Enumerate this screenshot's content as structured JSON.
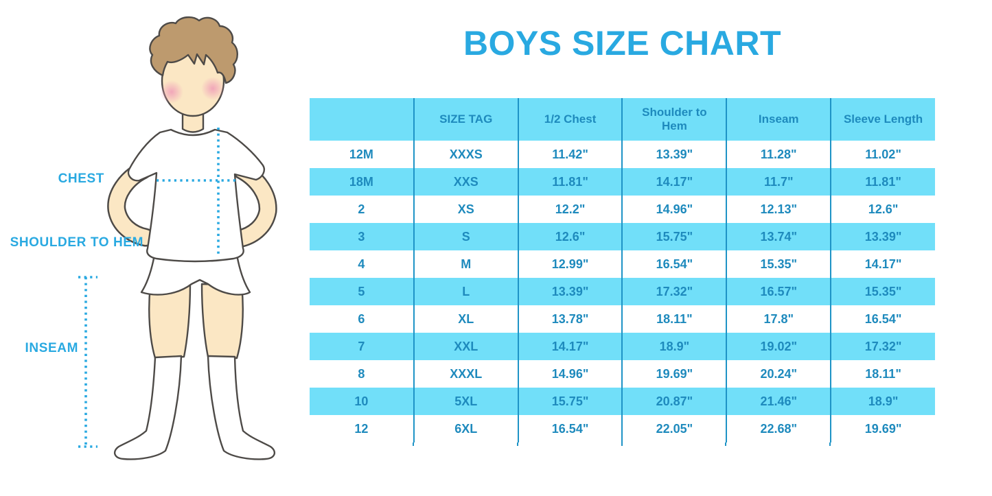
{
  "title": "BOYS SIZE CHART",
  "figure": {
    "chest_label": "CHEST",
    "shoulder_to_hem_label": "SHOULDER TO HEM",
    "inseam_label": "INSEAM"
  },
  "chart_data": {
    "type": "table",
    "title": "BOYS SIZE CHART",
    "columns": [
      "",
      "SIZE TAG",
      "1/2 Chest",
      "Shoulder to Hem",
      "Inseam",
      "Sleeve Length"
    ],
    "rows": [
      [
        "12M",
        "XXXS",
        "11.42\"",
        "13.39\"",
        "11.28\"",
        "11.02\""
      ],
      [
        "18M",
        "XXS",
        "11.81\"",
        "14.17\"",
        "11.7\"",
        "11.81\""
      ],
      [
        "2",
        "XS",
        "12.2\"",
        "14.96\"",
        "12.13\"",
        "12.6\""
      ],
      [
        "3",
        "S",
        "12.6\"",
        "15.75\"",
        "13.74\"",
        "13.39\""
      ],
      [
        "4",
        "M",
        "12.99\"",
        "16.54\"",
        "15.35\"",
        "14.17\""
      ],
      [
        "5",
        "L",
        "13.39\"",
        "17.32\"",
        "16.57\"",
        "15.35\""
      ],
      [
        "6",
        "XL",
        "13.78\"",
        "18.11\"",
        "17.8\"",
        "16.54\""
      ],
      [
        "7",
        "XXL",
        "14.17\"",
        "18.9\"",
        "19.02\"",
        "17.32\""
      ],
      [
        "8",
        "XXXL",
        "14.96\"",
        "19.69\"",
        "20.24\"",
        "18.11\""
      ],
      [
        "10",
        "5XL",
        "15.75\"",
        "20.87\"",
        "21.46\"",
        "18.9\""
      ],
      [
        "12",
        "6XL",
        "16.54\"",
        "22.05\"",
        "22.68\"",
        "19.69\""
      ]
    ],
    "units": "inches",
    "layout": {
      "header_background": "cyan",
      "row_striping": [
        "white",
        "cyan"
      ],
      "grid": "vertical-dividers-only",
      "legend_position": "none"
    }
  },
  "colors": {
    "accent_blue": "#29A9E1",
    "table_background_cyan": "#71DFF9",
    "table_text_blue": "#1E8ABD",
    "divider_blue": "#1E93C6"
  }
}
